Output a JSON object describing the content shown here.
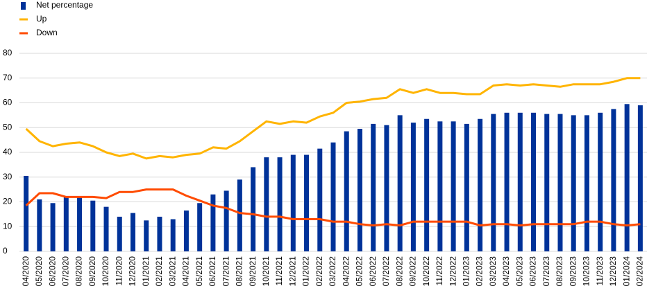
{
  "chart_data": {
    "type": "combo",
    "categories": [
      "04/2020",
      "05/2020",
      "06/2020",
      "07/2020",
      "08/2020",
      "09/2020",
      "10/2020",
      "11/2020",
      "12/2020",
      "01/2021",
      "02/2021",
      "03/2021",
      "04/2021",
      "05/2021",
      "06/2021",
      "07/2021",
      "08/2021",
      "09/2021",
      "10/2021",
      "11/2021",
      "12/2021",
      "01/2022",
      "02/2022",
      "03/2022",
      "04/2022",
      "05/2022",
      "06/2022",
      "07/2022",
      "08/2022",
      "09/2022",
      "10/2022",
      "11/2022",
      "12/2022",
      "01/2023",
      "02/2023",
      "03/2023",
      "04/2023",
      "05/2023",
      "06/2023",
      "07/2023",
      "08/2023",
      "09/2023",
      "10/2023",
      "11/2023",
      "12/2023",
      "01/2024",
      "02/2024"
    ],
    "series": [
      {
        "name": "Net percentage",
        "kind": "bar",
        "color": "#003299",
        "values": [
          30.5,
          21,
          19.5,
          22,
          22,
          20.5,
          18,
          14,
          15.5,
          12.5,
          14,
          13,
          16.5,
          19.5,
          23,
          24.5,
          29,
          34,
          38,
          38,
          39,
          39,
          41.5,
          44,
          48.5,
          49.5,
          51.5,
          51,
          55,
          52,
          53.5,
          52.5,
          52.5,
          51.5,
          53.5,
          55.5,
          56,
          56,
          56,
          55.5,
          55.5,
          55,
          55,
          56,
          57.5,
          59.5,
          59
        ]
      },
      {
        "name": "Up",
        "kind": "line",
        "color": "#ffb400",
        "values": [
          49.5,
          44.5,
          42.5,
          43.5,
          44,
          42.5,
          40,
          38.5,
          39.5,
          37.5,
          38.5,
          38,
          39,
          39.5,
          42,
          41.5,
          44.5,
          48.5,
          52.5,
          51.5,
          52.5,
          52,
          54.5,
          56,
          60,
          60.5,
          61.5,
          62,
          65.5,
          64,
          65.5,
          64,
          64,
          63.5,
          63.5,
          67,
          67.5,
          67,
          67.5,
          67,
          66.5,
          67.5,
          67.5,
          67.5,
          68.5,
          70,
          70
        ]
      },
      {
        "name": "Down",
        "kind": "line",
        "color": "#ff4b00",
        "values": [
          18.5,
          23.5,
          23.5,
          22,
          22,
          22,
          21.5,
          24,
          24,
          25,
          25,
          25,
          22.5,
          20.5,
          18.5,
          17.5,
          15.5,
          15,
          14,
          14,
          13,
          13,
          13,
          12,
          12,
          11,
          10.5,
          11,
          10.5,
          12,
          12,
          12,
          12,
          12,
          10.5,
          11,
          11,
          10.5,
          11,
          11,
          11,
          11,
          12,
          12,
          11,
          10.5,
          11
        ]
      }
    ],
    "ylim": [
      0,
      80
    ],
    "yticks": [
      0,
      10,
      20,
      30,
      40,
      50,
      60,
      70,
      80
    ],
    "grid": true,
    "legend": "top-left"
  }
}
